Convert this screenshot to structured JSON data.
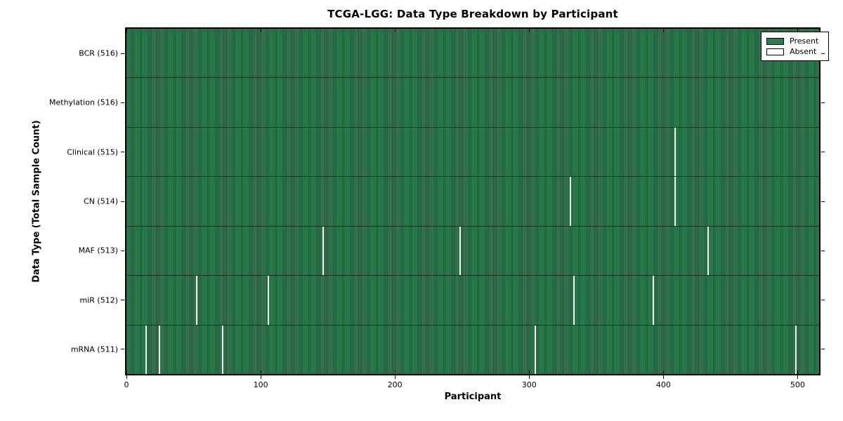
{
  "chart_data": {
    "type": "heatmap",
    "title": "TCGA-LGG: Data Type Breakdown by Participant",
    "xlabel": "Participant",
    "ylabel": "Data Type (Total Sample Count)",
    "n_participants": 516,
    "x_range": [
      0,
      516
    ],
    "x_ticks": [
      0,
      100,
      200,
      300,
      400,
      500
    ],
    "grid": false,
    "colors": {
      "present": "#2e7d50",
      "absent": "#ffffff"
    },
    "legend": {
      "position": "upper right",
      "entries": [
        {
          "label": "Present",
          "color": "#2e7d50"
        },
        {
          "label": "Absent",
          "color": "#ffffff"
        }
      ]
    },
    "rows": [
      {
        "label": "BCR (516)",
        "data_type": "BCR",
        "present_count": 516,
        "absent_participants": []
      },
      {
        "label": "Methylation (516)",
        "data_type": "Methylation",
        "present_count": 516,
        "absent_participants": []
      },
      {
        "label": "Clinical (515)",
        "data_type": "Clinical",
        "present_count": 515,
        "absent_participants": [
          408
        ]
      },
      {
        "label": "CN (514)",
        "data_type": "CN",
        "present_count": 514,
        "absent_participants": [
          330,
          408
        ]
      },
      {
        "label": "MAF (513)",
        "data_type": "MAF",
        "present_count": 513,
        "absent_participants": [
          146,
          248,
          433
        ]
      },
      {
        "label": "miR (512)",
        "data_type": "miR",
        "present_count": 512,
        "absent_participants": [
          52,
          105,
          333,
          392
        ]
      },
      {
        "label": "mRNA (511)",
        "data_type": "mRNA",
        "present_count": 511,
        "absent_participants": [
          14,
          24,
          71,
          304,
          498
        ]
      }
    ]
  }
}
